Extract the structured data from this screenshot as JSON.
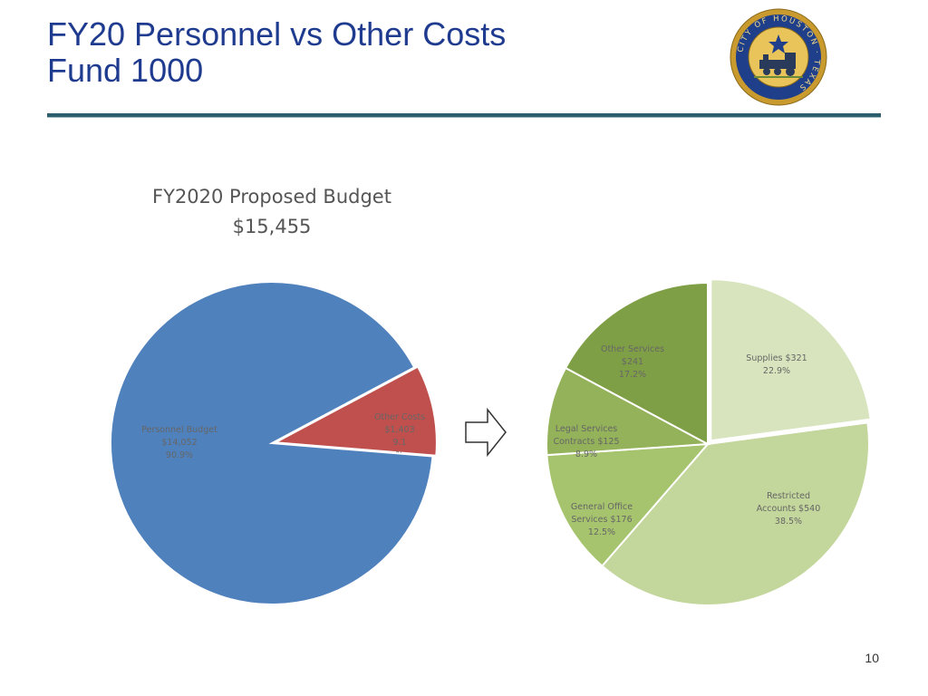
{
  "header": {
    "title_line1": "FY20 Personnel vs Other Costs",
    "title_line2": "Fund 1000",
    "logo": "city-of-houston-seal",
    "logo_text": "CITY OF HOUSTON · TEXAS"
  },
  "colors": {
    "title": "#1f3b8f",
    "rule": "#2d5e6e",
    "personnel": "#4f81bd",
    "other_costs": "#c0504d",
    "supplies": "#d7e4bd",
    "restricted": "#c3d69b",
    "general_office": "#a6c46e",
    "legal": "#93b25a",
    "other_services": "#7f9f46"
  },
  "footer": {
    "page_number": "10"
  },
  "chart_data": [
    {
      "type": "pie",
      "title": "FY2020 Proposed Budget",
      "subtitle": "$15,455",
      "slices": [
        {
          "label_lines": [
            "Other Costs",
            "$1,403",
            "9.1",
            "%"
          ],
          "value": 1403,
          "percent": 9.1,
          "color": "#c0504d"
        },
        {
          "label_lines": [
            "Personnel Budget",
            "$14,052",
            "90.9%"
          ],
          "value": 14052,
          "percent": 90.9,
          "color": "#4f81bd"
        }
      ]
    },
    {
      "type": "pie",
      "slices": [
        {
          "label_lines": [
            "Supplies $321",
            "22.9%"
          ],
          "value": 321,
          "percent": 22.9,
          "color": "#d7e4bd"
        },
        {
          "label_lines": [
            "Restricted",
            "Accounts $540",
            "38.5%"
          ],
          "value": 540,
          "percent": 38.5,
          "color": "#c3d69b"
        },
        {
          "label_lines": [
            "General Office",
            "Services $176",
            "12.5%"
          ],
          "value": 176,
          "percent": 12.5,
          "color": "#a6c46e"
        },
        {
          "label_lines": [
            "Legal Services",
            "Contracts $125",
            "8.9%"
          ],
          "value": 125,
          "percent": 8.9,
          "color": "#93b25a"
        },
        {
          "label_lines": [
            "Other Services",
            "$241",
            "17.2%"
          ],
          "value": 241,
          "percent": 17.2,
          "color": "#7f9f46"
        }
      ]
    }
  ]
}
